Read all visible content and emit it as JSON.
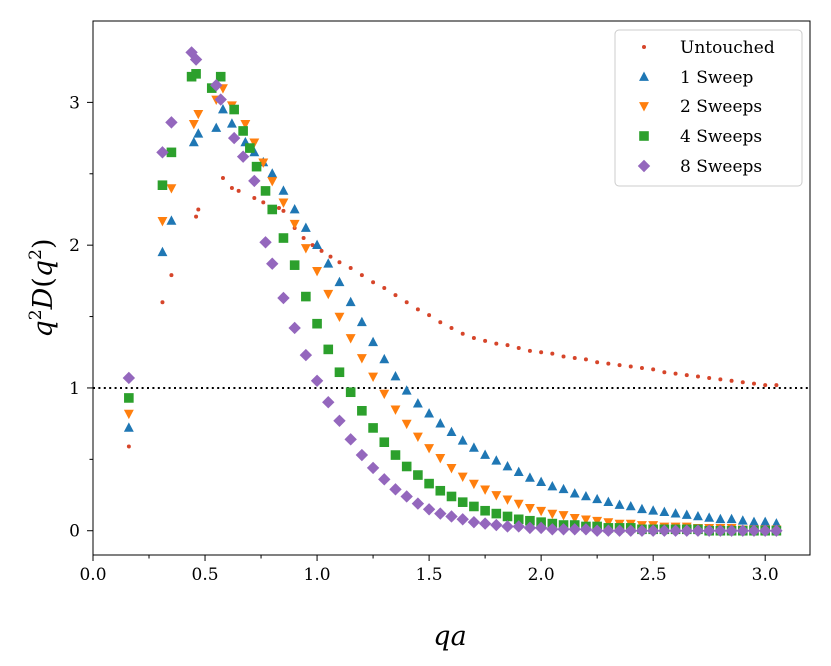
{
  "chart_data": {
    "type": "scatter",
    "title": "",
    "xlabel": "qa",
    "ylabel": "q^2 D(q^2)",
    "ylabel_parts": {
      "q": "q",
      "exp": "2",
      "D": "D",
      "open": "(",
      "q2": "q",
      "exp2": "2",
      "close": ")"
    },
    "xlim": [
      0.0,
      3.2
    ],
    "ylim": [
      -0.17,
      3.57
    ],
    "xticks": [
      0.0,
      0.5,
      1.0,
      1.5,
      2.0,
      2.5,
      3.0
    ],
    "xtick_labels": [
      "0.0",
      "0.5",
      "1.0",
      "1.5",
      "2.0",
      "2.5",
      "3.0"
    ],
    "yticks": [
      0,
      1,
      2,
      3
    ],
    "ytick_labels": [
      "0",
      "1",
      "2",
      "3"
    ],
    "reference_line": {
      "y": 1.0,
      "style": "dotted",
      "color": "#000000"
    },
    "legend_position": "top-right",
    "series": [
      {
        "name": "Untouched",
        "marker": "dot",
        "color": "#d6452a",
        "points": [
          [
            0.16,
            0.59
          ],
          [
            0.31,
            1.6
          ],
          [
            0.35,
            1.79
          ],
          [
            0.46,
            2.2
          ],
          [
            0.47,
            2.25
          ],
          [
            0.58,
            2.47
          ],
          [
            0.62,
            2.4
          ],
          [
            0.65,
            2.38
          ],
          [
            0.72,
            2.33
          ],
          [
            0.76,
            2.3
          ],
          [
            0.83,
            2.26
          ],
          [
            0.85,
            2.24
          ],
          [
            0.9,
            2.12
          ],
          [
            0.94,
            2.05
          ],
          [
            0.98,
            2.0
          ],
          [
            1.02,
            1.96
          ],
          [
            1.06,
            1.92
          ],
          [
            1.1,
            1.88
          ],
          [
            1.15,
            1.84
          ],
          [
            1.2,
            1.79
          ],
          [
            1.25,
            1.74
          ],
          [
            1.3,
            1.7
          ],
          [
            1.35,
            1.65
          ],
          [
            1.4,
            1.6
          ],
          [
            1.45,
            1.55
          ],
          [
            1.5,
            1.51
          ],
          [
            1.55,
            1.46
          ],
          [
            1.6,
            1.42
          ],
          [
            1.65,
            1.38
          ],
          [
            1.7,
            1.35
          ],
          [
            1.75,
            1.33
          ],
          [
            1.8,
            1.31
          ],
          [
            1.85,
            1.3
          ],
          [
            1.9,
            1.28
          ],
          [
            1.95,
            1.26
          ],
          [
            2.0,
            1.25
          ],
          [
            2.05,
            1.24
          ],
          [
            2.1,
            1.22
          ],
          [
            2.15,
            1.21
          ],
          [
            2.2,
            1.2
          ],
          [
            2.25,
            1.18
          ],
          [
            2.3,
            1.17
          ],
          [
            2.35,
            1.16
          ],
          [
            2.4,
            1.15
          ],
          [
            2.45,
            1.14
          ],
          [
            2.5,
            1.13
          ],
          [
            2.55,
            1.11
          ],
          [
            2.6,
            1.1
          ],
          [
            2.65,
            1.09
          ],
          [
            2.7,
            1.08
          ],
          [
            2.75,
            1.07
          ],
          [
            2.8,
            1.06
          ],
          [
            2.85,
            1.05
          ],
          [
            2.9,
            1.04
          ],
          [
            2.95,
            1.03
          ],
          [
            3.0,
            1.02
          ],
          [
            3.05,
            1.02
          ]
        ]
      },
      {
        "name": "1 Sweep",
        "marker": "triangle-up",
        "color": "#1f77b4",
        "points": [
          [
            0.16,
            0.72
          ],
          [
            0.31,
            1.95
          ],
          [
            0.35,
            2.17
          ],
          [
            0.45,
            2.72
          ],
          [
            0.47,
            2.78
          ],
          [
            0.55,
            2.82
          ],
          [
            0.58,
            2.95
          ],
          [
            0.62,
            2.85
          ],
          [
            0.68,
            2.72
          ],
          [
            0.72,
            2.65
          ],
          [
            0.76,
            2.58
          ],
          [
            0.8,
            2.5
          ],
          [
            0.85,
            2.38
          ],
          [
            0.9,
            2.25
          ],
          [
            0.95,
            2.12
          ],
          [
            1.0,
            2.0
          ],
          [
            1.05,
            1.87
          ],
          [
            1.1,
            1.74
          ],
          [
            1.15,
            1.6
          ],
          [
            1.2,
            1.46
          ],
          [
            1.25,
            1.32
          ],
          [
            1.3,
            1.2
          ],
          [
            1.35,
            1.08
          ],
          [
            1.4,
            0.98
          ],
          [
            1.45,
            0.89
          ],
          [
            1.5,
            0.82
          ],
          [
            1.55,
            0.75
          ],
          [
            1.6,
            0.69
          ],
          [
            1.65,
            0.63
          ],
          [
            1.7,
            0.58
          ],
          [
            1.75,
            0.53
          ],
          [
            1.8,
            0.49
          ],
          [
            1.85,
            0.45
          ],
          [
            1.9,
            0.41
          ],
          [
            1.95,
            0.37
          ],
          [
            2.0,
            0.34
          ],
          [
            2.05,
            0.31
          ],
          [
            2.1,
            0.29
          ],
          [
            2.15,
            0.26
          ],
          [
            2.2,
            0.24
          ],
          [
            2.25,
            0.22
          ],
          [
            2.3,
            0.2
          ],
          [
            2.35,
            0.18
          ],
          [
            2.4,
            0.17
          ],
          [
            2.45,
            0.15
          ],
          [
            2.5,
            0.14
          ],
          [
            2.55,
            0.13
          ],
          [
            2.6,
            0.12
          ],
          [
            2.65,
            0.11
          ],
          [
            2.7,
            0.1
          ],
          [
            2.75,
            0.09
          ],
          [
            2.8,
            0.08
          ],
          [
            2.85,
            0.08
          ],
          [
            2.9,
            0.07
          ],
          [
            2.95,
            0.06
          ],
          [
            3.0,
            0.06
          ],
          [
            3.05,
            0.05
          ]
        ]
      },
      {
        "name": "2 Sweeps",
        "marker": "triangle-down",
        "color": "#ff7f0e",
        "points": [
          [
            0.16,
            0.82
          ],
          [
            0.31,
            2.17
          ],
          [
            0.35,
            2.4
          ],
          [
            0.45,
            2.85
          ],
          [
            0.47,
            2.92
          ],
          [
            0.55,
            3.02
          ],
          [
            0.58,
            3.1
          ],
          [
            0.62,
            2.98
          ],
          [
            0.68,
            2.85
          ],
          [
            0.72,
            2.72
          ],
          [
            0.76,
            2.58
          ],
          [
            0.8,
            2.45
          ],
          [
            0.85,
            2.3
          ],
          [
            0.9,
            2.15
          ],
          [
            0.95,
            1.98
          ],
          [
            1.0,
            1.82
          ],
          [
            1.05,
            1.66
          ],
          [
            1.1,
            1.5
          ],
          [
            1.15,
            1.35
          ],
          [
            1.2,
            1.21
          ],
          [
            1.25,
            1.08
          ],
          [
            1.3,
            0.96
          ],
          [
            1.35,
            0.85
          ],
          [
            1.4,
            0.75
          ],
          [
            1.45,
            0.66
          ],
          [
            1.5,
            0.58
          ],
          [
            1.55,
            0.51
          ],
          [
            1.6,
            0.44
          ],
          [
            1.65,
            0.38
          ],
          [
            1.7,
            0.33
          ],
          [
            1.75,
            0.29
          ],
          [
            1.8,
            0.25
          ],
          [
            1.85,
            0.22
          ],
          [
            1.9,
            0.19
          ],
          [
            1.95,
            0.16
          ],
          [
            2.0,
            0.14
          ],
          [
            2.05,
            0.12
          ],
          [
            2.1,
            0.11
          ],
          [
            2.15,
            0.09
          ],
          [
            2.2,
            0.08
          ],
          [
            2.25,
            0.07
          ],
          [
            2.3,
            0.06
          ],
          [
            2.35,
            0.05
          ],
          [
            2.4,
            0.05
          ],
          [
            2.45,
            0.04
          ],
          [
            2.5,
            0.04
          ],
          [
            2.55,
            0.03
          ],
          [
            2.6,
            0.03
          ],
          [
            2.65,
            0.03
          ],
          [
            2.7,
            0.02
          ],
          [
            2.75,
            0.02
          ],
          [
            2.8,
            0.02
          ],
          [
            2.85,
            0.02
          ],
          [
            2.9,
            0.01
          ],
          [
            2.95,
            0.01
          ],
          [
            3.0,
            0.01
          ],
          [
            3.05,
            0.01
          ]
        ]
      },
      {
        "name": "4 Sweeps",
        "marker": "square",
        "color": "#2ca02c",
        "points": [
          [
            0.16,
            0.93
          ],
          [
            0.31,
            2.42
          ],
          [
            0.35,
            2.65
          ],
          [
            0.44,
            3.18
          ],
          [
            0.46,
            3.2
          ],
          [
            0.53,
            3.1
          ],
          [
            0.57,
            3.18
          ],
          [
            0.63,
            2.95
          ],
          [
            0.67,
            2.8
          ],
          [
            0.7,
            2.68
          ],
          [
            0.73,
            2.55
          ],
          [
            0.77,
            2.38
          ],
          [
            0.8,
            2.25
          ],
          [
            0.85,
            2.05
          ],
          [
            0.9,
            1.86
          ],
          [
            0.95,
            1.64
          ],
          [
            1.0,
            1.45
          ],
          [
            1.05,
            1.27
          ],
          [
            1.1,
            1.11
          ],
          [
            1.15,
            0.97
          ],
          [
            1.2,
            0.84
          ],
          [
            1.25,
            0.72
          ],
          [
            1.3,
            0.62
          ],
          [
            1.35,
            0.53
          ],
          [
            1.4,
            0.45
          ],
          [
            1.45,
            0.39
          ],
          [
            1.5,
            0.33
          ],
          [
            1.55,
            0.28
          ],
          [
            1.6,
            0.24
          ],
          [
            1.65,
            0.2
          ],
          [
            1.7,
            0.17
          ],
          [
            1.75,
            0.14
          ],
          [
            1.8,
            0.12
          ],
          [
            1.85,
            0.1
          ],
          [
            1.9,
            0.08
          ],
          [
            1.95,
            0.07
          ],
          [
            2.0,
            0.06
          ],
          [
            2.05,
            0.05
          ],
          [
            2.1,
            0.04
          ],
          [
            2.15,
            0.04
          ],
          [
            2.2,
            0.03
          ],
          [
            2.25,
            0.03
          ],
          [
            2.3,
            0.02
          ],
          [
            2.35,
            0.02
          ],
          [
            2.4,
            0.02
          ],
          [
            2.45,
            0.01
          ],
          [
            2.5,
            0.01
          ],
          [
            2.55,
            0.01
          ],
          [
            2.6,
            0.01
          ],
          [
            2.65,
            0.01
          ],
          [
            2.7,
            0.01
          ],
          [
            2.75,
            0.0
          ],
          [
            2.8,
            0.0
          ],
          [
            2.85,
            0.0
          ],
          [
            2.9,
            0.0
          ],
          [
            2.95,
            0.0
          ],
          [
            3.0,
            0.0
          ],
          [
            3.05,
            0.0
          ]
        ]
      },
      {
        "name": "8 Sweeps",
        "marker": "diamond",
        "color": "#9467bd",
        "points": [
          [
            0.16,
            1.07
          ],
          [
            0.31,
            2.65
          ],
          [
            0.35,
            2.86
          ],
          [
            0.44,
            3.35
          ],
          [
            0.46,
            3.3
          ],
          [
            0.55,
            3.12
          ],
          [
            0.57,
            3.02
          ],
          [
            0.63,
            2.75
          ],
          [
            0.67,
            2.62
          ],
          [
            0.72,
            2.45
          ],
          [
            0.77,
            2.02
          ],
          [
            0.8,
            1.87
          ],
          [
            0.85,
            1.63
          ],
          [
            0.9,
            1.42
          ],
          [
            0.95,
            1.23
          ],
          [
            1.0,
            1.05
          ],
          [
            1.05,
            0.9
          ],
          [
            1.1,
            0.77
          ],
          [
            1.15,
            0.64
          ],
          [
            1.2,
            0.53
          ],
          [
            1.25,
            0.44
          ],
          [
            1.3,
            0.36
          ],
          [
            1.35,
            0.29
          ],
          [
            1.4,
            0.24
          ],
          [
            1.45,
            0.19
          ],
          [
            1.5,
            0.15
          ],
          [
            1.55,
            0.12
          ],
          [
            1.6,
            0.1
          ],
          [
            1.65,
            0.08
          ],
          [
            1.7,
            0.06
          ],
          [
            1.75,
            0.05
          ],
          [
            1.8,
            0.04
          ],
          [
            1.85,
            0.03
          ],
          [
            1.9,
            0.03
          ],
          [
            1.95,
            0.02
          ],
          [
            2.0,
            0.02
          ],
          [
            2.05,
            0.01
          ],
          [
            2.1,
            0.01
          ],
          [
            2.15,
            0.01
          ],
          [
            2.2,
            0.01
          ],
          [
            2.25,
            0.0
          ],
          [
            2.3,
            0.0
          ],
          [
            2.35,
            0.0
          ],
          [
            2.4,
            0.0
          ],
          [
            2.45,
            0.0
          ],
          [
            2.5,
            0.0
          ],
          [
            2.55,
            0.0
          ],
          [
            2.6,
            0.0
          ],
          [
            2.65,
            0.0
          ],
          [
            2.7,
            0.0
          ],
          [
            2.75,
            0.0
          ],
          [
            2.8,
            0.0
          ],
          [
            2.85,
            0.0
          ],
          [
            2.9,
            0.0
          ],
          [
            2.95,
            0.0
          ],
          [
            3.0,
            0.0
          ],
          [
            3.05,
            0.0
          ]
        ]
      }
    ]
  }
}
